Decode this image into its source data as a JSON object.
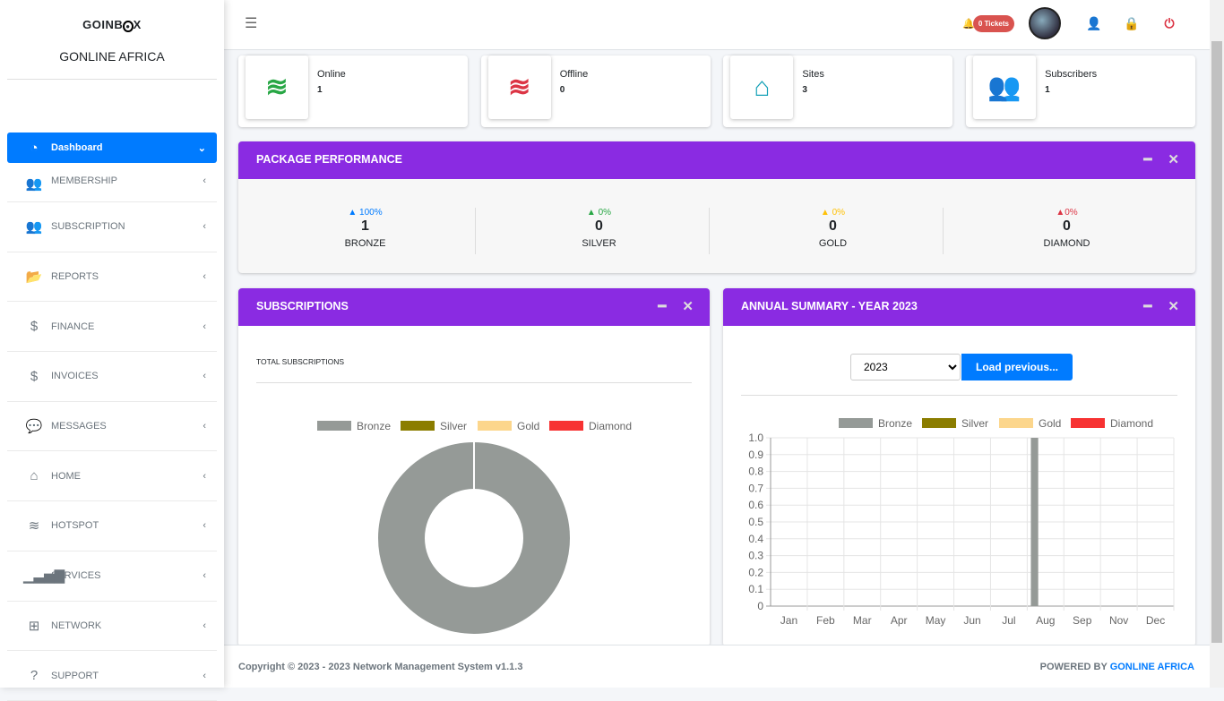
{
  "sidebar": {
    "logo": "GOINBOX",
    "brand": "GONLINE AFRICA",
    "items": [
      {
        "label": "Dashboard",
        "icon": "tachometer-icon",
        "glyph": "◔",
        "chev": "⌄"
      },
      {
        "label": "MEMBERSHIP",
        "icon": "users-icon",
        "glyph": "👥",
        "chev": "‹"
      },
      {
        "label": "SUBSCRIPTION",
        "icon": "users-icon",
        "glyph": "👥",
        "chev": "‹"
      },
      {
        "label": "REPORTS",
        "icon": "folder-open-icon",
        "glyph": "📂",
        "chev": "‹"
      },
      {
        "label": "FINANCE",
        "icon": "hand-dollar-icon",
        "glyph": "$",
        "chev": "‹"
      },
      {
        "label": "INVOICES",
        "icon": "hand-dollar-icon",
        "glyph": "$",
        "chev": "‹"
      },
      {
        "label": "MESSAGES",
        "icon": "sms-icon",
        "glyph": "💬",
        "chev": "‹"
      },
      {
        "label": "HOME",
        "icon": "home-icon",
        "glyph": "⌂",
        "chev": "‹"
      },
      {
        "label": "HOTSPOT",
        "icon": "wifi-icon",
        "glyph": "≋",
        "chev": "‹"
      },
      {
        "label": "SERVICES",
        "icon": "signal-icon",
        "glyph": "▁▃▅▇",
        "chev": "‹"
      },
      {
        "label": "NETWORK",
        "icon": "network-icon",
        "glyph": "⊞",
        "chev": "‹"
      },
      {
        "label": "SUPPORT",
        "icon": "question-circle-icon",
        "glyph": "?",
        "chev": "‹"
      }
    ]
  },
  "header": {
    "tickets": "0 Tickets"
  },
  "info_boxes": [
    {
      "title": "Online",
      "value": "1",
      "icon": "wifi-icon",
      "color": "#28a745"
    },
    {
      "title": "Offline",
      "value": "0",
      "icon": "wifi-icon",
      "color": "#dc3545"
    },
    {
      "title": "Sites",
      "value": "3",
      "icon": "home-icon",
      "color": "#17a2b8"
    },
    {
      "title": "Subscribers",
      "value": "1",
      "icon": "users-icon",
      "color": "#ffc107"
    }
  ],
  "package": {
    "title": "PACKAGE PERFORMANCE",
    "stats": [
      {
        "pct": "▲ 100%",
        "num": "1",
        "name": "BRONZE",
        "color": "#007bff"
      },
      {
        "pct": "▲ 0%",
        "num": "0",
        "name": "SILVER",
        "color": "#28a745"
      },
      {
        "pct": "▲ 0%",
        "num": "0",
        "name": "GOLD",
        "color": "#ffc107"
      },
      {
        "pct": "▲0%",
        "num": "0",
        "name": "DIAMOND",
        "color": "#dc3545"
      }
    ]
  },
  "subscriptions": {
    "title": "SUBSCRIPTIONS",
    "subtitle": "TOTAL SUBSCRIPTIONS"
  },
  "annual": {
    "title": "ANNUAL SUMMARY - YEAR 2023",
    "year": "2023",
    "load_label": "Load previous..."
  },
  "chart_data": [
    {
      "type": "pie",
      "donut": true,
      "labels": [
        "Bronze",
        "Silver",
        "Gold",
        "Diamond"
      ],
      "values": [
        1,
        0,
        0,
        0
      ],
      "colors": [
        "#959a97",
        "#8b7d00",
        "#fcd68c",
        "#f73232"
      ],
      "legend": "top"
    },
    {
      "type": "bar",
      "categories": [
        "Jan",
        "Feb",
        "Mar",
        "Apr",
        "May",
        "Jun",
        "Jul",
        "Aug",
        "Sep",
        "Nov",
        "Dec"
      ],
      "series": [
        {
          "name": "Bronze",
          "values": [
            0,
            0,
            0,
            0,
            0,
            0,
            0,
            1,
            0,
            0,
            0
          ],
          "color": "#959a97"
        },
        {
          "name": "Silver",
          "values": [
            0,
            0,
            0,
            0,
            0,
            0,
            0,
            0,
            0,
            0,
            0
          ],
          "color": "#8b7d00"
        },
        {
          "name": "Gold",
          "values": [
            0,
            0,
            0,
            0,
            0,
            0,
            0,
            0,
            0,
            0,
            0
          ],
          "color": "#fcd68c"
        },
        {
          "name": "Diamond",
          "values": [
            0,
            0,
            0,
            0,
            0,
            0,
            0,
            0,
            0,
            0,
            0
          ],
          "color": "#f73232"
        }
      ],
      "ylim": [
        0,
        1.0
      ],
      "yticks": [
        "0",
        "0.1",
        "0.2",
        "0.3",
        "0.4",
        "0.5",
        "0.6",
        "0.7",
        "0.8",
        "0.9",
        "1.0"
      ],
      "grid": true,
      "legend": "top"
    }
  ],
  "footer": {
    "copyright": "Copyright © 2023 - 2023 Network Management System v1.1.3",
    "powered": "POWERED BY",
    "powered_link": "GONLINE AFRICA"
  }
}
